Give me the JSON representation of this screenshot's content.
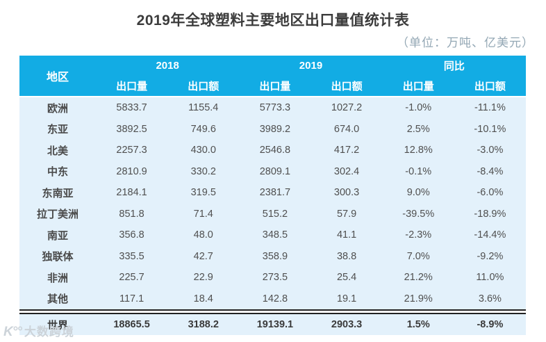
{
  "title": "2019年全球塑料主要地区出口量值统计表",
  "unit_note": "（单位：万吨、亿美元）",
  "colors": {
    "header_bg": "#12ACE4",
    "body_bg": "#E3F1FB",
    "header_text": "#FFFFFF",
    "body_text": "#4F4F4F",
    "title_text": "#3C3C3C",
    "unit_text": "#93A7B4",
    "total_rule": "#222222",
    "watermark_text": "#CCD3D9"
  },
  "watermark": {
    "logo": "K°°",
    "text": "大数跨境"
  },
  "table": {
    "region_header": "地区",
    "groups": [
      {
        "label": "2018",
        "columns": [
          "出口量",
          "出口额"
        ]
      },
      {
        "label": "2019",
        "columns": [
          "出口量",
          "出口额"
        ]
      },
      {
        "label": "同比",
        "columns": [
          "出口量",
          "出口额"
        ]
      }
    ],
    "rows": [
      {
        "region": "欧洲",
        "values": [
          "5833.7",
          "1155.4",
          "5773.3",
          "1027.2",
          "-1.0%",
          "-11.1%"
        ]
      },
      {
        "region": "东亚",
        "values": [
          "3892.5",
          "749.6",
          "3989.2",
          "674.0",
          "2.5%",
          "-10.1%"
        ]
      },
      {
        "region": "北美",
        "values": [
          "2257.3",
          "430.0",
          "2546.8",
          "417.2",
          "12.8%",
          "-3.0%"
        ]
      },
      {
        "region": "中东",
        "values": [
          "2810.9",
          "330.2",
          "2809.1",
          "302.4",
          "-0.1%",
          "-8.4%"
        ]
      },
      {
        "region": "东南亚",
        "values": [
          "2184.1",
          "319.5",
          "2381.7",
          "300.3",
          "9.0%",
          "-6.0%"
        ]
      },
      {
        "region": "拉丁美洲",
        "values": [
          "851.8",
          "71.4",
          "515.2",
          "57.9",
          "-39.5%",
          "-18.9%"
        ]
      },
      {
        "region": "南亚",
        "values": [
          "356.8",
          "48.0",
          "348.5",
          "41.1",
          "-2.3%",
          "-14.4%"
        ]
      },
      {
        "region": "独联体",
        "values": [
          "335.5",
          "42.7",
          "358.9",
          "38.8",
          "7.0%",
          "-9.2%"
        ]
      },
      {
        "region": "非洲",
        "values": [
          "225.7",
          "22.9",
          "273.5",
          "25.4",
          "21.2%",
          "11.0%"
        ]
      },
      {
        "region": "其他",
        "values": [
          "117.1",
          "18.4",
          "142.8",
          "19.1",
          "21.9%",
          "3.6%"
        ]
      }
    ],
    "total_row": {
      "region": "世界",
      "values": [
        "18865.5",
        "3188.2",
        "19139.1",
        "2903.3",
        "1.5%",
        "-8.9%"
      ]
    }
  },
  "chart_data": {
    "type": "table",
    "title": "2019年全球塑料主要地区出口量值统计表",
    "unit": "万吨、亿美元",
    "columns": [
      "地区",
      "2018 出口量",
      "2018 出口额",
      "2019 出口量",
      "2019 出口额",
      "同比 出口量",
      "同比 出口额"
    ],
    "rows": [
      [
        "欧洲",
        5833.7,
        1155.4,
        5773.3,
        1027.2,
        "-1.0%",
        "-11.1%"
      ],
      [
        "东亚",
        3892.5,
        749.6,
        3989.2,
        674.0,
        "2.5%",
        "-10.1%"
      ],
      [
        "北美",
        2257.3,
        430.0,
        2546.8,
        417.2,
        "12.8%",
        "-3.0%"
      ],
      [
        "中东",
        2810.9,
        330.2,
        2809.1,
        302.4,
        "-0.1%",
        "-8.4%"
      ],
      [
        "东南亚",
        2184.1,
        319.5,
        2381.7,
        300.3,
        "9.0%",
        "-6.0%"
      ],
      [
        "拉丁美洲",
        851.8,
        71.4,
        515.2,
        57.9,
        "-39.5%",
        "-18.9%"
      ],
      [
        "南亚",
        356.8,
        48.0,
        348.5,
        41.1,
        "-2.3%",
        "-14.4%"
      ],
      [
        "独联体",
        335.5,
        42.7,
        358.9,
        38.8,
        "7.0%",
        "-9.2%"
      ],
      [
        "非洲",
        225.7,
        22.9,
        273.5,
        25.4,
        "21.2%",
        "11.0%"
      ],
      [
        "其他",
        117.1,
        18.4,
        142.8,
        19.1,
        "21.9%",
        "3.6%"
      ],
      [
        "世界",
        18865.5,
        3188.2,
        19139.1,
        2903.3,
        "1.5%",
        "-8.9%"
      ]
    ]
  }
}
